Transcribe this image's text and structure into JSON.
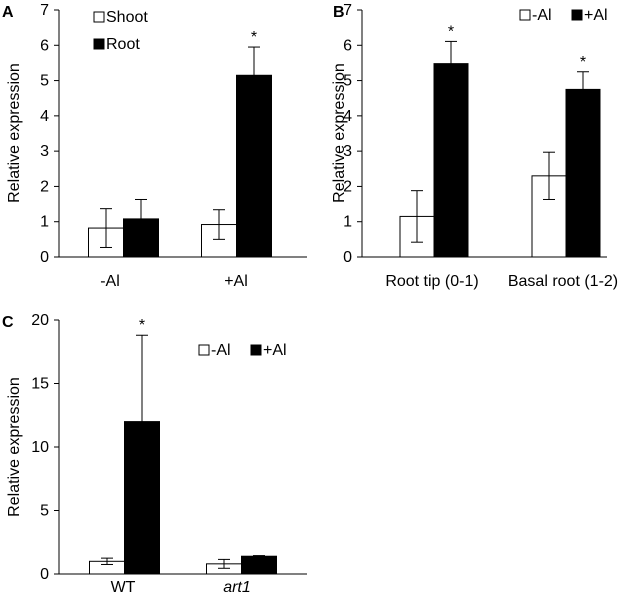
{
  "colors": {
    "filled": "#000000",
    "open": "#ffffff",
    "stroke": "#000000"
  },
  "chart_data": [
    {
      "panel": "A",
      "type": "bar",
      "categories": [
        "-Al",
        "+Al"
      ],
      "ylabel": "Relative expression",
      "ylim": [
        0,
        7
      ],
      "yticks": [
        "0",
        "1",
        "2",
        "3",
        "4",
        "5",
        "6",
        "7"
      ],
      "legend_position": "top-left",
      "series": [
        {
          "name": "Shoot",
          "fill": "open",
          "values": [
            0.82,
            0.92
          ],
          "errors": [
            0.55,
            0.42
          ]
        },
        {
          "name": "Root",
          "fill": "filled",
          "values": [
            1.08,
            5.15
          ],
          "errors": [
            0.55,
            0.8
          ]
        }
      ],
      "significance": [
        {
          "series": 1,
          "category": 1,
          "text": "*"
        }
      ]
    },
    {
      "panel": "B",
      "type": "bar",
      "categories": [
        "Root tip (0-1)",
        "Basal root (1-2)"
      ],
      "ylabel": "Relative expression",
      "ylim": [
        0,
        7
      ],
      "yticks": [
        "0",
        "1",
        "2",
        "3",
        "4",
        "5",
        "6",
        "7"
      ],
      "legend_position": "top-right",
      "series": [
        {
          "name": "-Al",
          "fill": "open",
          "values": [
            1.15,
            2.3
          ],
          "errors": [
            0.73,
            0.67
          ]
        },
        {
          "name": "+Al",
          "fill": "filled",
          "values": [
            5.48,
            4.75
          ],
          "errors": [
            0.63,
            0.5
          ]
        }
      ],
      "significance": [
        {
          "series": 1,
          "category": 0,
          "text": "*"
        },
        {
          "series": 1,
          "category": 1,
          "text": "*"
        }
      ]
    },
    {
      "panel": "C",
      "type": "bar",
      "categories": [
        "WT",
        "art1"
      ],
      "category_italic": [
        false,
        true
      ],
      "ylabel": "Relative expression",
      "ylim": [
        0,
        20
      ],
      "yticks": [
        "0",
        "5",
        "10",
        "15",
        "20"
      ],
      "legend_position": "top-right",
      "series": [
        {
          "name": "-Al",
          "fill": "open",
          "values": [
            1.0,
            0.8
          ],
          "errors": [
            0.25,
            0.35
          ]
        },
        {
          "name": "+Al",
          "fill": "filled",
          "values": [
            12.0,
            1.4
          ],
          "errors": [
            6.8,
            0.05
          ]
        }
      ],
      "significance": [
        {
          "series": 1,
          "category": 0,
          "text": "*"
        }
      ]
    }
  ]
}
